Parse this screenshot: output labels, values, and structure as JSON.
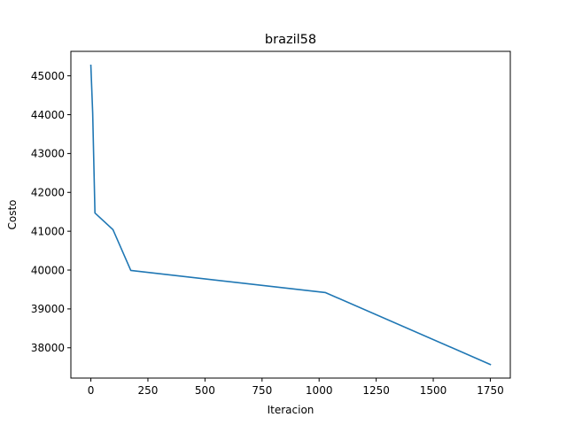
{
  "chart_data": {
    "type": "line",
    "title": "brazil58",
    "xlabel": "Iteracion",
    "ylabel": "Costo",
    "xlim": [
      -87.5,
      1837.5
    ],
    "ylim": [
      37220,
      45630
    ],
    "xticks": [
      0,
      250,
      500,
      750,
      1000,
      1250,
      1500,
      1750
    ],
    "yticks": [
      38000,
      39000,
      40000,
      41000,
      42000,
      43000,
      44000,
      45000
    ],
    "grid": false,
    "series": [
      {
        "color": "#1f77b4",
        "x": [
          0,
          8,
          18,
          97,
          175,
          1028,
          1750
        ],
        "y": [
          45270,
          44050,
          41470,
          41040,
          39990,
          39420,
          37570
        ]
      }
    ]
  }
}
